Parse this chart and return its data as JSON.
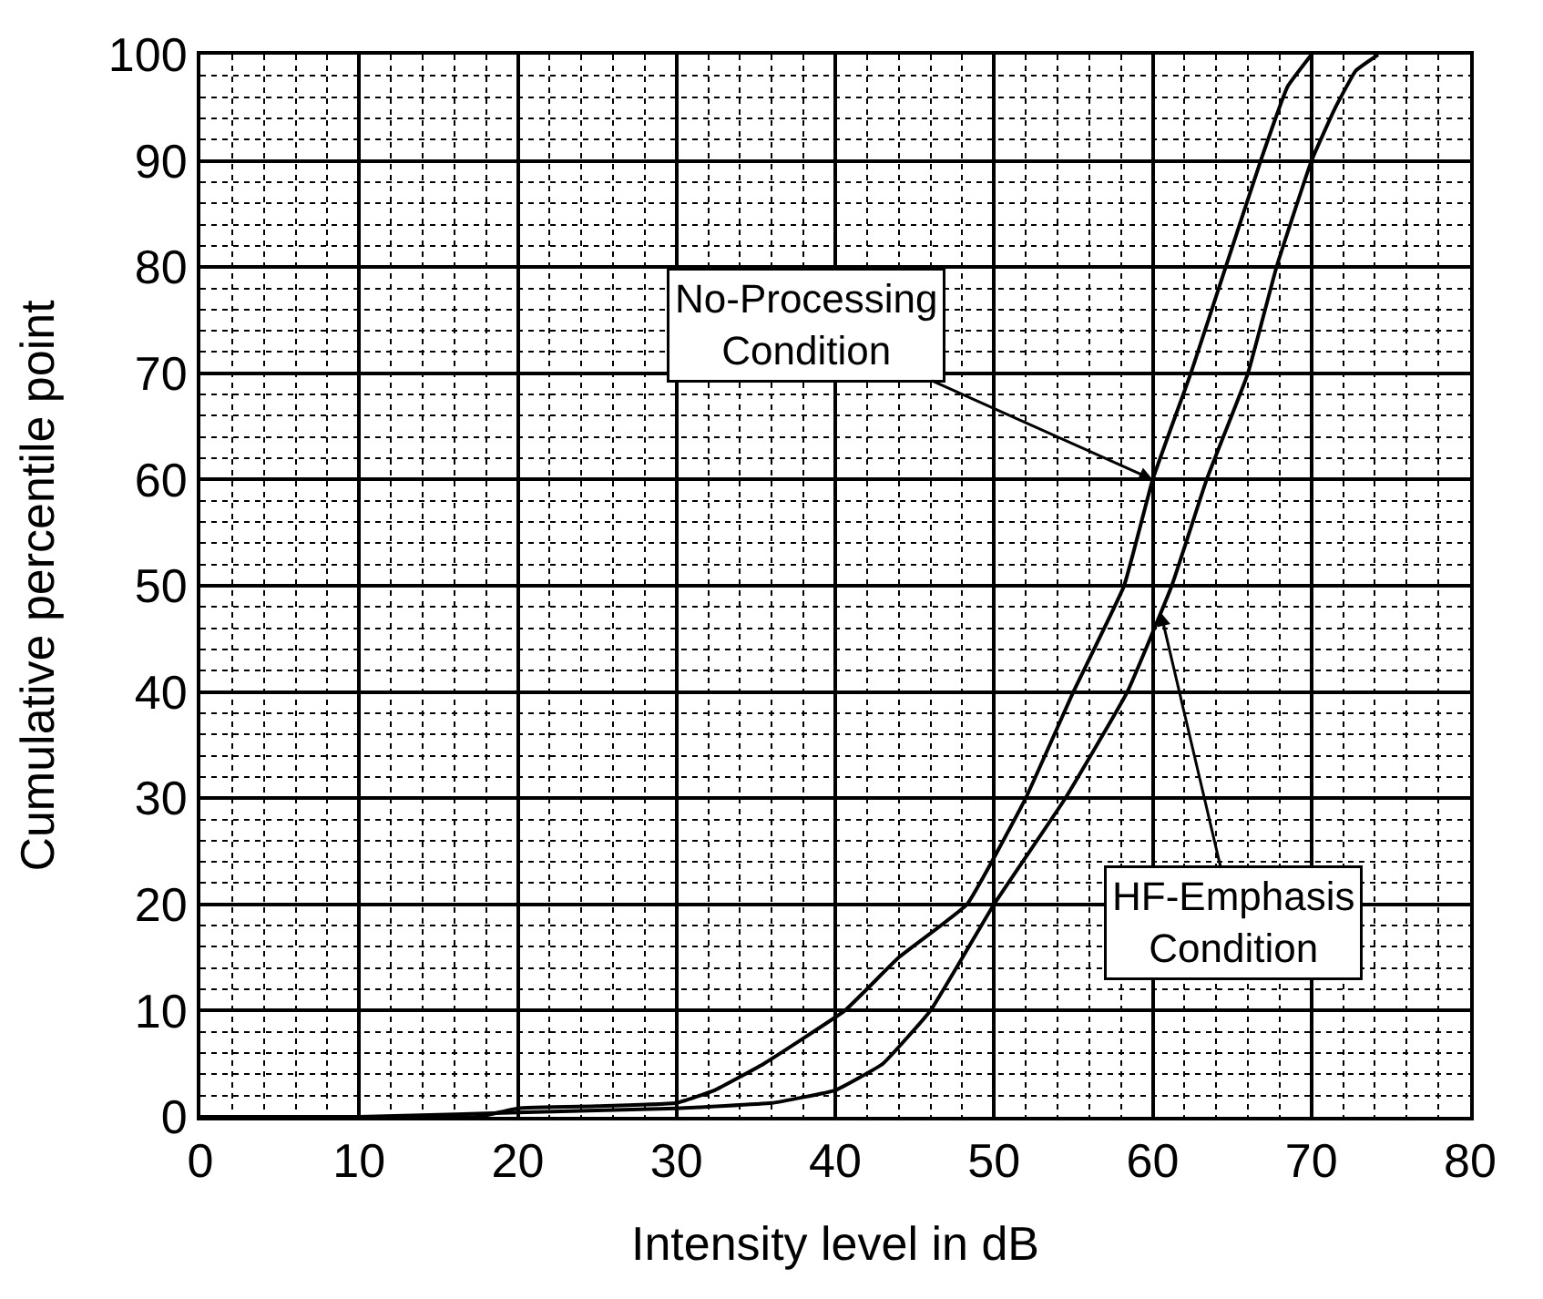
{
  "chart_data": {
    "type": "line",
    "xlabel": "Intensity level in dB",
    "ylabel": "Cumulative percentile point",
    "series": [
      {
        "color": "#000000",
        "x": [
          0,
          10,
          17.5,
          20,
          25,
          30,
          32.4,
          35.5,
          40.6,
          44,
          48.3,
          52,
          55,
          58.2,
          60,
          62.4,
          64.6,
          66.8,
          68.5,
          70
        ],
        "values": [
          0,
          0,
          0,
          0.8,
          1.0,
          1.3,
          2.5,
          5,
          10,
          15,
          20,
          30,
          40,
          50,
          60,
          70,
          80,
          90,
          97,
          100
        ]
      },
      {
        "color": "#000000",
        "x": [
          0,
          10,
          20,
          30,
          36,
          40,
          43,
          46,
          50,
          54.5,
          58.4,
          61.2,
          63.4,
          66,
          67.8,
          70,
          71.5,
          72.8,
          74.2
        ],
        "values": [
          0,
          0,
          0.4,
          0.8,
          1.3,
          2.5,
          5,
          10,
          20,
          30,
          40,
          50,
          60,
          70,
          80,
          90,
          95,
          98.5,
          100
        ]
      }
    ],
    "xlim": [
      0,
      80
    ],
    "xticks": [
      0,
      10,
      20,
      30,
      40,
      50,
      60,
      70,
      80
    ],
    "ylim": [
      0,
      100
    ],
    "yticks": [
      0,
      10,
      20,
      30,
      40,
      50,
      60,
      70,
      80,
      90,
      100
    ],
    "grid": true,
    "line_style": "solid",
    "marker": "none",
    "annotations": [
      {
        "text": "No-Processing\nCondition",
        "x": 60,
        "y": 60
      },
      {
        "text": "HF-Emphasis\nCondition",
        "x": 60.5,
        "y": 47.5
      }
    ]
  }
}
